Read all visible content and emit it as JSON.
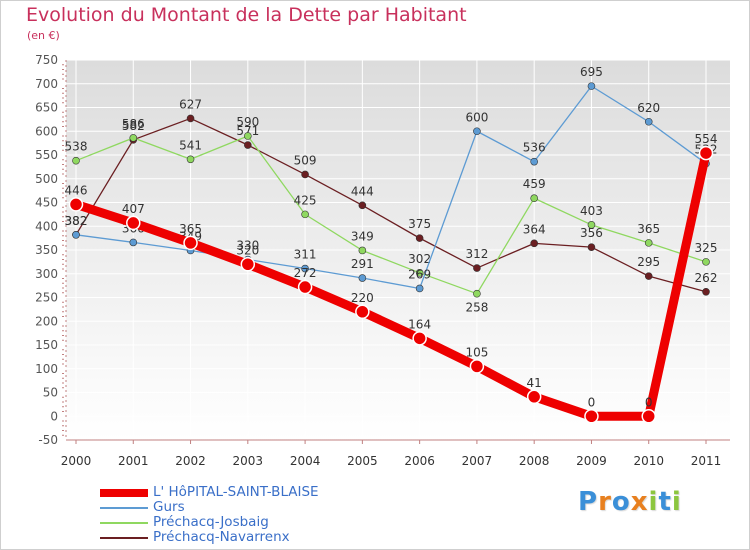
{
  "title": "Evolution du Montant de la Dette par Habitant",
  "subtitle": "(en €)",
  "chart_data": {
    "type": "line",
    "x": [
      "2000",
      "2001",
      "2002",
      "2003",
      "2004",
      "2005",
      "2006",
      "2007",
      "2008",
      "2009",
      "2010",
      "2011"
    ],
    "ylim": [
      -50,
      750
    ],
    "yticks": [
      -50,
      0,
      50,
      100,
      150,
      200,
      250,
      300,
      350,
      400,
      450,
      500,
      550,
      600,
      650,
      700,
      750
    ],
    "grid": true,
    "legend_position": "bottom-left",
    "series": [
      {
        "name": "Préchacq-Navarrenx",
        "color": "#6b1f22",
        "values": [
          382,
          582,
          627,
          571,
          509,
          444,
          375,
          312,
          364,
          356,
          295,
          262
        ],
        "label_offsets": [
          -1,
          -1,
          -1,
          -1,
          -1,
          -1,
          -1,
          -1,
          -1,
          -1,
          -1,
          -1
        ]
      },
      {
        "name": "Préchacq-Josbaig",
        "color": "#8fd860",
        "values": [
          538,
          586,
          541,
          590,
          425,
          349,
          302,
          258,
          459,
          403,
          365,
          325
        ],
        "label_offsets": [
          -1,
          -1,
          -1,
          -1,
          -1,
          -1,
          -1,
          1,
          -1,
          -1,
          -1,
          -1
        ]
      },
      {
        "name": "Gurs",
        "color": "#5d9bd3",
        "values": [
          382,
          366,
          349,
          330,
          311,
          291,
          269,
          600,
          536,
          695,
          620,
          532
        ],
        "label_offsets": [
          -1,
          -1,
          -1,
          -1,
          -1,
          -1,
          -1,
          -1,
          -1,
          -1,
          -1,
          -1
        ]
      },
      {
        "name": "L' HôPITAL-SAINT-BLAISE",
        "color": "#ee0000",
        "values": [
          446,
          407,
          365,
          320,
          272,
          220,
          164,
          105,
          41,
          0,
          0,
          554
        ],
        "label_offsets": [
          -1,
          -1,
          -1,
          -1,
          -1,
          -1,
          -1,
          -1,
          -1,
          -1,
          -1,
          -1
        ],
        "thick": true
      }
    ]
  },
  "legend": [
    {
      "label": "L' HôPITAL-SAINT-BLAISE",
      "color": "#ee0000",
      "thick": true
    },
    {
      "label": "Gurs",
      "color": "#5d9bd3",
      "thick": false
    },
    {
      "label": "Préchacq-Josbaig",
      "color": "#8fd860",
      "thick": false
    },
    {
      "label": "Préchacq-Navarrenx",
      "color": "#6b1f22",
      "thick": false
    }
  ],
  "logo": {
    "letters": [
      "P",
      "r",
      "o",
      "x",
      "i",
      "t",
      "i"
    ],
    "colors": [
      "#3a8fd8",
      "#e8801f",
      "#3a8fd8",
      "#e8801f",
      "#8cc63f",
      "#3a8fd8",
      "#8cc63f"
    ]
  }
}
